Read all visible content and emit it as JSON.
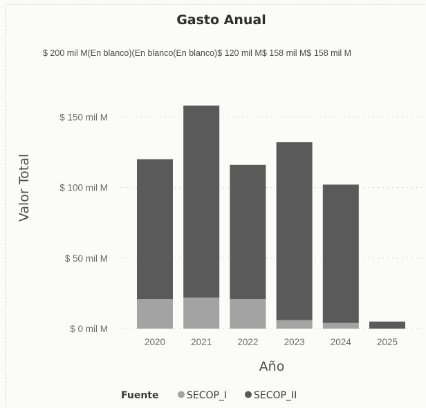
{
  "chart_data": {
    "type": "bar",
    "stacked": true,
    "title": "Gasto Anual",
    "xlabel": "Año",
    "ylabel": "Valor Total",
    "categories": [
      "2020",
      "2021",
      "2022",
      "2023",
      "2024",
      "2025"
    ],
    "ylim": [
      0,
      200
    ],
    "yticks": [
      {
        "value": 0,
        "label": "$ 0 mil M"
      },
      {
        "value": 50,
        "label": "$ 50 mil M"
      },
      {
        "value": 100,
        "label": "$ 100 mil M"
      },
      {
        "value": 150,
        "label": "$ 150 mil M"
      },
      {
        "value": 200,
        "label": "$ 200 mil M"
      }
    ],
    "grid": true,
    "legend": {
      "title": "Fuente",
      "placement": "bottom"
    },
    "series": [
      {
        "name": "SECOP_I",
        "color": "#a3a3a3",
        "values": [
          21,
          22,
          21,
          6,
          4,
          0
        ]
      },
      {
        "name": "SECOP_II",
        "color": "#5a5a5a",
        "values": [
          99,
          136,
          95,
          126,
          98,
          5
        ]
      }
    ],
    "top_labels_text": "$ 200 mil M(En blanco)(En blanco(En blanco)$ 120 mil M$ 158 mil M$ 158 mil M"
  }
}
